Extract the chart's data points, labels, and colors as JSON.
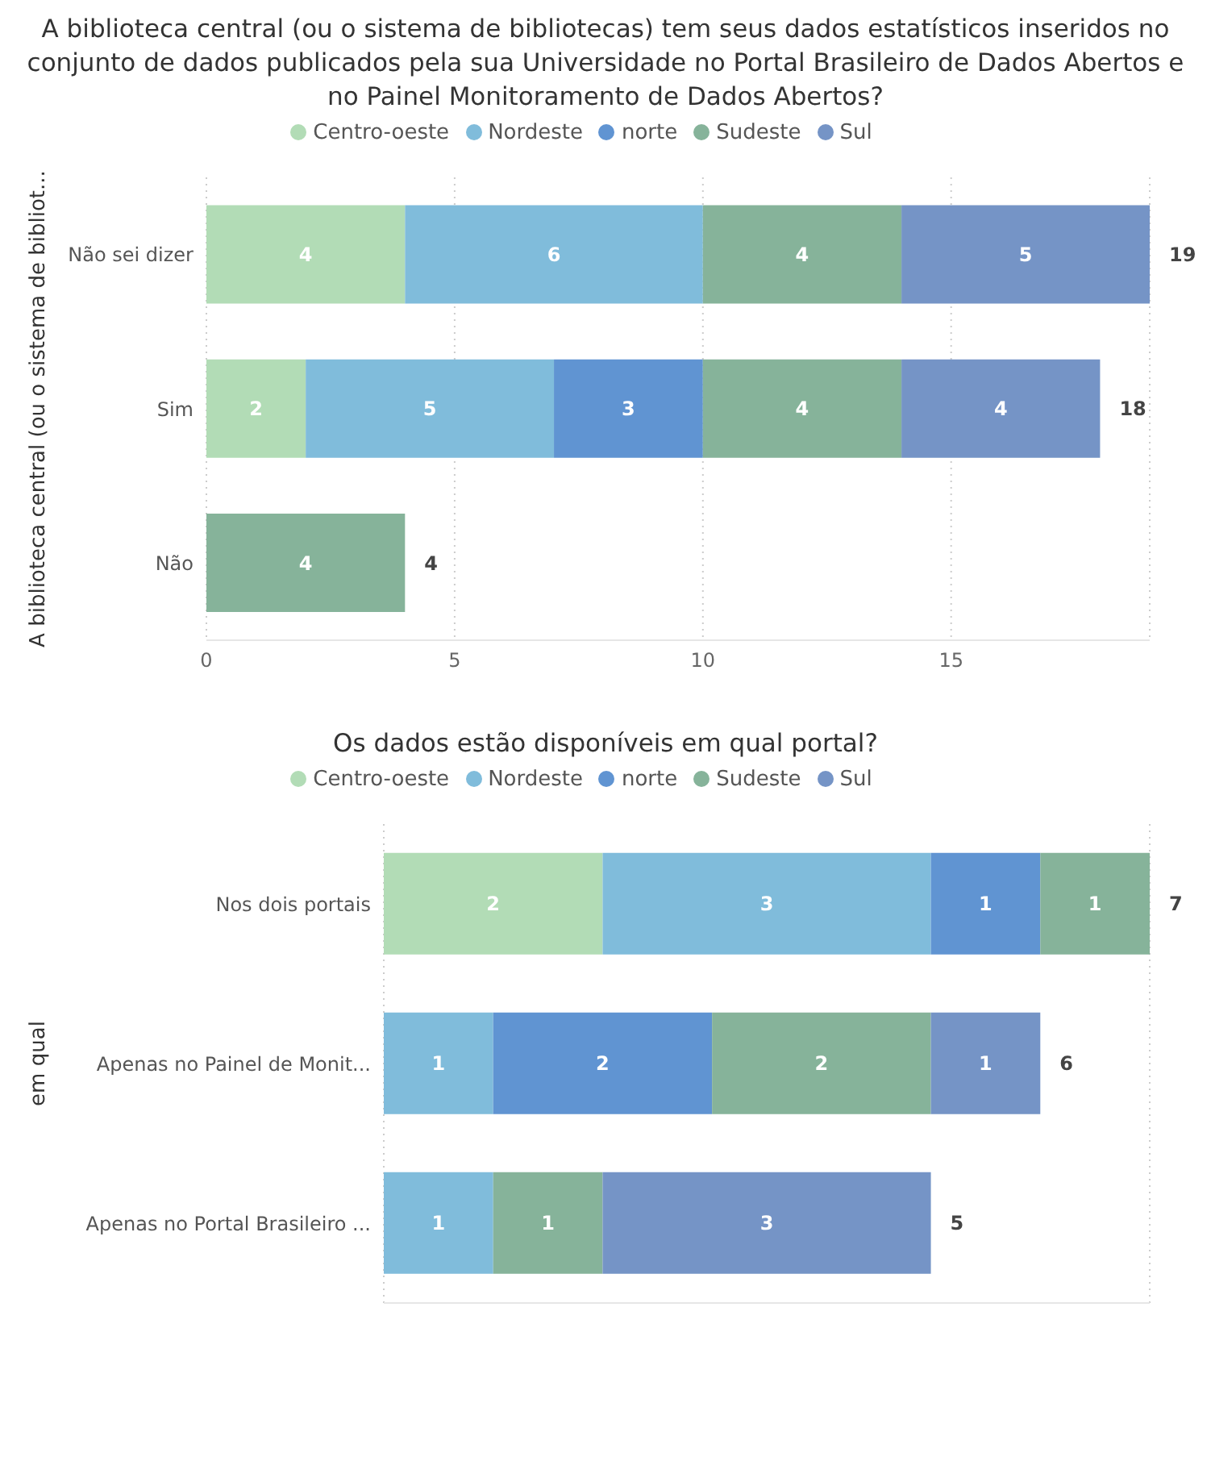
{
  "chart_data": [
    {
      "type": "bar",
      "orientation": "horizontal",
      "stacked": true,
      "title": "A biblioteca central (ou o sistema de bibliotecas) tem seus dados estatísticos inseridos no conjunto de dados publicados pela sua Universidade no Portal Brasileiro de Dados Abertos e no Painel Monitoramento de Dados Abertos?",
      "ylabel": "A biblioteca central (ou o sistema de bibliot...",
      "categories": [
        "Não sei dizer",
        "Sim",
        "Não"
      ],
      "series": [
        {
          "name": "Centro-oeste",
          "color": "#b2dcb6",
          "values": [
            4,
            2,
            null
          ]
        },
        {
          "name": "Nordeste",
          "color": "#80bcdb",
          "values": [
            6,
            5,
            null
          ]
        },
        {
          "name": "norte",
          "color": "#6094d2",
          "values": [
            null,
            3,
            null
          ]
        },
        {
          "name": "Sudeste",
          "color": "#86b39a",
          "values": [
            4,
            4,
            4
          ]
        },
        {
          "name": "Sul",
          "color": "#7594c6",
          "values": [
            5,
            4,
            null
          ]
        }
      ],
      "xlim": [
        0,
        19
      ],
      "xticks": [
        0,
        5,
        10,
        15
      ],
      "grid": "x",
      "legend": "top",
      "data_labels": true,
      "totals": [
        "19",
        "18",
        "4"
      ]
    },
    {
      "type": "bar",
      "orientation": "horizontal",
      "stacked": true,
      "title": "Os dados estão disponíveis em qual portal?",
      "ylabel": "em qual",
      "categories": [
        "Nos dois portais",
        "Apenas no Painel de Monit...",
        "Apenas no Portal Brasileiro ..."
      ],
      "series": [
        {
          "name": "Centro-oeste",
          "color": "#b2dcb6",
          "values": [
            2,
            null,
            null
          ]
        },
        {
          "name": "Nordeste",
          "color": "#80bcdb",
          "values": [
            3,
            1,
            1
          ]
        },
        {
          "name": "norte",
          "color": "#6094d2",
          "values": [
            1,
            2,
            null
          ]
        },
        {
          "name": "Sudeste",
          "color": "#86b39a",
          "values": [
            1,
            2,
            1
          ]
        },
        {
          "name": "Sul",
          "color": "#7594c6",
          "values": [
            null,
            1,
            3
          ]
        }
      ],
      "xlim": [
        0,
        7
      ],
      "tick_labels": "y",
      "grid": "x",
      "legend": "top",
      "data_labels": true,
      "totals": [
        "7",
        "6",
        "5"
      ]
    }
  ]
}
